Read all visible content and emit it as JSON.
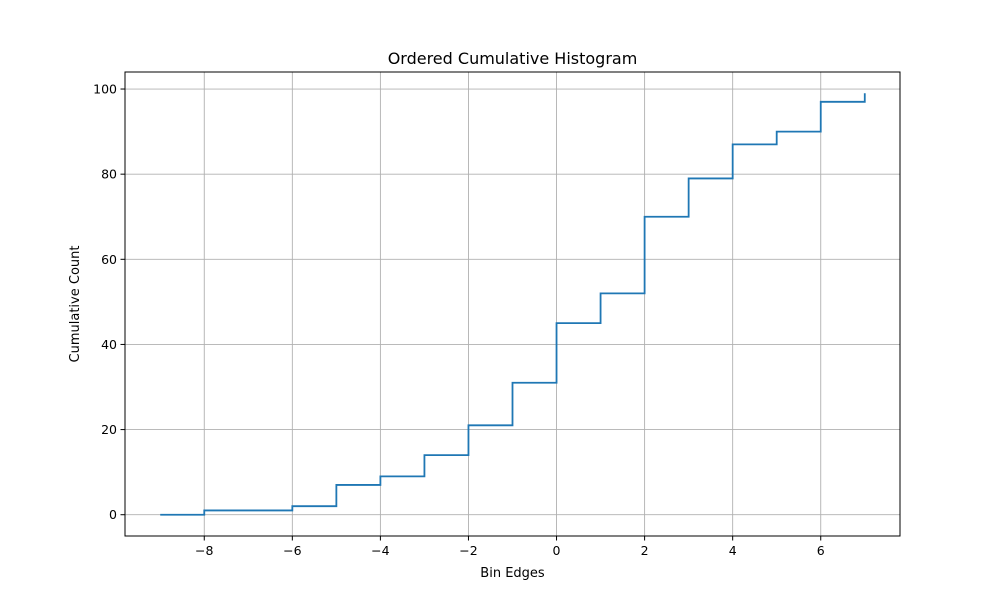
{
  "chart_data": {
    "type": "line",
    "drawstyle": "steps-post",
    "title": "Ordered Cumulative Histogram",
    "xlabel": "Bin Edges",
    "ylabel": "Cumulative Count",
    "xlim": [
      -9.8,
      7.8
    ],
    "ylim": [
      -5,
      104
    ],
    "xticks": [
      -8,
      -6,
      -4,
      -2,
      0,
      2,
      4,
      6
    ],
    "yticks": [
      0,
      20,
      40,
      60,
      80,
      100
    ],
    "grid": true,
    "series": [
      {
        "color": "#1f77b4",
        "x": [
          -9,
          -8,
          -7,
          -6,
          -5,
          -4,
          -3,
          -2,
          -1,
          0,
          1,
          2,
          3,
          4,
          5,
          6,
          7
        ],
        "y": [
          0,
          1,
          1,
          2,
          7,
          9,
          14,
          21,
          31,
          45,
          52,
          70,
          79,
          87,
          90,
          97,
          99
        ]
      }
    ]
  }
}
